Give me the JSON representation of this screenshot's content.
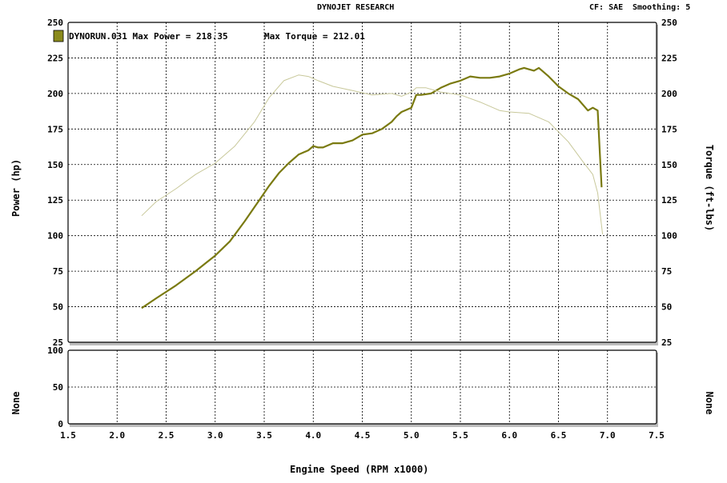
{
  "header": {
    "title": "DYNOJET RESEARCH",
    "cf_label": "CF: SAE",
    "smoothing_label": "Smoothing: 5"
  },
  "legend": {
    "entry": "DYNORUN.031 Max Power = 218.35",
    "torque": "Max Torque = 212.01",
    "swatch_color": "#8a8a1c"
  },
  "colors": {
    "power": "#7a7a10",
    "torque": "#c8c89a",
    "grid": "#000000",
    "shadow": "#b0b0b0"
  },
  "chart_data": [
    {
      "type": "line",
      "xlabel": "Engine Speed (RPM x1000)",
      "ylabel": "Power (hp)",
      "y2label": "Torque (ft-lbs)",
      "xlim": [
        1.5,
        7.5
      ],
      "ylim": [
        25,
        250
      ],
      "y2lim": [
        25,
        250
      ],
      "x_ticks": [
        "1.5",
        "2.0",
        "2.5",
        "3.0",
        "3.5",
        "4.0",
        "4.5",
        "5.0",
        "5.5",
        "6.0",
        "6.5",
        "7.0",
        "7.5"
      ],
      "y_ticks": [
        "25",
        "50",
        "75",
        "100",
        "125",
        "150",
        "175",
        "200",
        "225",
        "250"
      ],
      "grid": true,
      "legend": "top-left",
      "series": [
        {
          "name": "DYNORUN.031",
          "kind": "power",
          "x": [
            2.25,
            2.4,
            2.6,
            2.8,
            3.0,
            3.15,
            3.3,
            3.45,
            3.55,
            3.65,
            3.75,
            3.85,
            3.95,
            4.0,
            4.05,
            4.1,
            4.2,
            4.3,
            4.4,
            4.5,
            4.6,
            4.7,
            4.8,
            4.85,
            4.9,
            5.0,
            5.05,
            5.1,
            5.2,
            5.3,
            5.4,
            5.5,
            5.6,
            5.7,
            5.8,
            5.9,
            6.0,
            6.1,
            6.15,
            6.25,
            6.3,
            6.4,
            6.5,
            6.6,
            6.7,
            6.8,
            6.85,
            6.9,
            6.92,
            6.94
          ],
          "y": [
            49,
            56,
            65,
            75,
            86,
            96,
            110,
            125,
            135,
            144,
            151,
            157,
            160,
            163,
            162,
            162,
            165,
            165,
            167,
            171,
            172,
            175,
            180,
            184,
            187,
            190,
            199,
            199,
            200,
            204,
            207,
            209,
            212,
            211,
            211,
            212,
            214,
            217,
            218,
            216,
            218,
            212,
            205,
            200,
            196,
            188,
            190,
            188,
            160,
            134
          ]
        },
        {
          "name": "DYNORUN.031",
          "kind": "torque",
          "x": [
            2.25,
            2.4,
            2.6,
            2.8,
            3.0,
            3.2,
            3.4,
            3.55,
            3.7,
            3.85,
            3.95,
            4.05,
            4.2,
            4.4,
            4.6,
            4.8,
            4.9,
            5.0,
            5.05,
            5.15,
            5.3,
            5.5,
            5.7,
            5.9,
            6.0,
            6.2,
            6.4,
            6.6,
            6.75,
            6.85,
            6.9,
            6.95
          ],
          "y": [
            114,
            124,
            133,
            143,
            151,
            163,
            180,
            197,
            209,
            213,
            212,
            209,
            205,
            202,
            199,
            200,
            198,
            201,
            204,
            204,
            201,
            199,
            194,
            188,
            187,
            186,
            180,
            166,
            152,
            143,
            130,
            101
          ]
        }
      ]
    },
    {
      "type": "line",
      "xlabel": "",
      "ylabel": "None",
      "y2label": "None",
      "xlim": [
        1.5,
        7.5
      ],
      "ylim": [
        0,
        100
      ],
      "y_ticks": [
        "0",
        "50",
        "100"
      ],
      "grid": true,
      "series": []
    }
  ]
}
